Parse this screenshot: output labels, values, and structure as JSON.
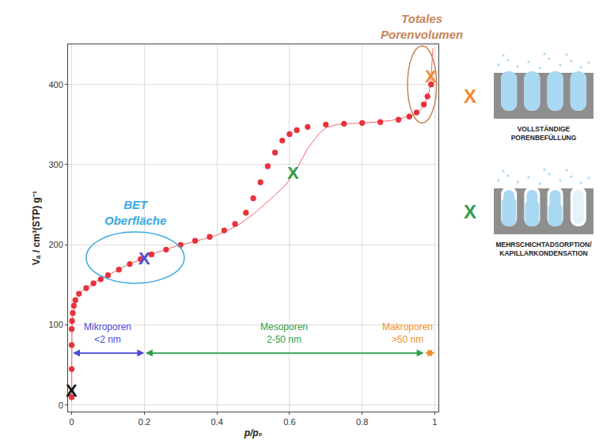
{
  "chart_data": {
    "type": "scatter",
    "xlabel": "p/p₀",
    "ylabel": "Vₐ / cm³(STP) g⁻¹",
    "xlim": [
      -0.01,
      1.01
    ],
    "xticks": [
      0,
      0.2,
      0.4,
      0.6,
      0.8,
      1
    ],
    "ylim": [
      -8,
      450
    ],
    "yticks": [
      0,
      100,
      200,
      300,
      400
    ],
    "grid": true,
    "series": [
      {
        "color": "#e8323c",
        "marker": "filled",
        "line_style": "none",
        "x": [
          0,
          0,
          0,
          0,
          0.001,
          0.003,
          0.006,
          0.01,
          0.02,
          0.04,
          0.06,
          0.08,
          0.1,
          0.13,
          0.16,
          0.19,
          0.22,
          0.26,
          0.3,
          0.34,
          0.38,
          0.42,
          0.45,
          0.48,
          0.5,
          0.52,
          0.54,
          0.56,
          0.58,
          0.6,
          0.62,
          0.65,
          0.7,
          0.75,
          0.8,
          0.85,
          0.9,
          0.93,
          0.95,
          0.97,
          0.98,
          0.99
        ],
        "values": [
          10,
          45,
          75,
          95,
          105,
          115,
          124,
          131,
          139,
          146,
          152,
          157,
          162,
          169,
          176,
          182,
          188,
          194,
          200,
          205,
          210,
          218,
          226,
          240,
          258,
          278,
          298,
          315,
          330,
          338,
          343,
          347,
          350,
          351,
          352,
          353,
          356,
          360,
          365,
          375,
          385,
          400
        ]
      },
      {
        "color": "#e8323c",
        "marker": "open",
        "line_style": "solid",
        "x": [
          0,
          0,
          0,
          0,
          0.001,
          0.003,
          0.006,
          0.01,
          0.02,
          0.03,
          0.05,
          0.07,
          0.1,
          0.12,
          0.15,
          0.18,
          0.2,
          0.22,
          0.25,
          0.28,
          0.3,
          0.33,
          0.36,
          0.4,
          0.43,
          0.46,
          0.5,
          0.53,
          0.56,
          0.59,
          0.62,
          0.65,
          0.68,
          0.7,
          0.73,
          0.76,
          0.8,
          0.84,
          0.88,
          0.91,
          0.94,
          0.96,
          0.975,
          0.985,
          0.99,
          0.995
        ],
        "values": [
          5,
          30,
          60,
          85,
          100,
          112,
          122,
          130,
          138,
          143,
          149,
          155,
          162,
          167,
          174,
          180,
          184,
          188,
          193,
          197,
          200,
          203,
          207,
          212,
          218,
          225,
          238,
          250,
          262,
          275,
          295,
          320,
          338,
          346,
          350,
          351,
          352,
          353,
          355,
          358,
          362,
          368,
          378,
          392,
          410,
          445
        ]
      }
    ],
    "markers": [
      {
        "label": "X",
        "x": 0,
        "y": 18,
        "color": "#111111"
      },
      {
        "label": "X",
        "x": 0.2,
        "y": 183,
        "color": "#4a4ad8"
      },
      {
        "label": "X",
        "x": 0.61,
        "y": 290,
        "color": "#2e9e4a"
      },
      {
        "label": "X",
        "x": 0.99,
        "y": 410,
        "color": "#f08a30"
      }
    ],
    "regions": [
      {
        "label": "BET\nOberfläche",
        "x": [
          0.04,
          0.31
        ],
        "y": [
          152,
          216
        ],
        "color": "#3aa8e0"
      },
      {
        "label": "Totales\nPorenvolumen",
        "x": [
          0.925,
          1.005
        ],
        "y": [
          352,
          448
        ],
        "color": "#c8865a"
      }
    ],
    "pore_ranges": [
      {
        "label": "Mikroporen\n<2 nm",
        "from": 0,
        "to": 0.2,
        "color": "#4a4ad8"
      },
      {
        "label": "Mesoporen\n2-50 nm",
        "from": 0.2,
        "to": 0.97,
        "color": "#2e9e4a"
      },
      {
        "label": "Makroporen\n>50 nm",
        "from": 0.97,
        "to": 1,
        "color": "#f0902a"
      }
    ],
    "range_arrow_y": 65,
    "side_panel": [
      {
        "label": "X",
        "color": "#f08a30",
        "text": "VOLLSTÄNDIGE\nPORENBEFÜLLUNG"
      },
      {
        "label": "X",
        "color": "#2e9e4a",
        "text": "MEHRSCHICHTADSORPTION/\nKAPILLARKONDENSATION"
      }
    ]
  }
}
